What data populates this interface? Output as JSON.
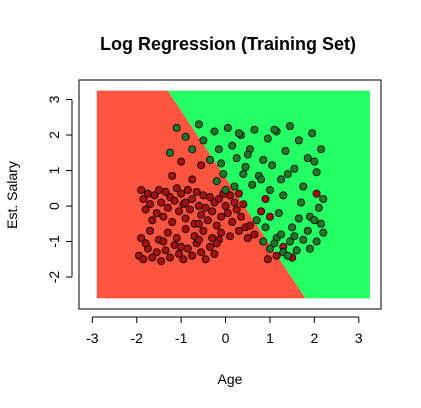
{
  "chart_data": {
    "type": "scatter",
    "title": "Log Regression (Training Set)",
    "xlabel": "Age",
    "ylabel": "Est. Salary",
    "xlim": [
      -3.3,
      3.5
    ],
    "ylim": [
      -2.9,
      3.55
    ],
    "x_ticks": [
      -3,
      -2,
      -1,
      0,
      1,
      2,
      3
    ],
    "y_ticks": [
      -2,
      -1,
      0,
      1,
      2,
      3
    ],
    "grid": false,
    "colors": {
      "region_class_0": "#ff5540",
      "region_class_1": "#24ff63",
      "class_0_point": "#a81010",
      "class_1_point": "#1a7a2a",
      "point_outline": "#000000"
    },
    "decision_regions": {
      "x_range": [
        -2.9,
        3.25
      ],
      "y_range": [
        -2.6,
        3.25
      ],
      "boundary_line": [
        [
          -1.3,
          3.25
        ],
        [
          1.8,
          -2.6
        ]
      ],
      "class_0_side": "left",
      "class_1_side": "right"
    },
    "series": [
      {
        "class": 0,
        "points": [
          [
            -1.9,
            0.45
          ],
          [
            -1.85,
            0.2
          ],
          [
            -1.8,
            -0.1
          ],
          [
            -1.75,
            0.35
          ],
          [
            -1.7,
            0.05
          ],
          [
            -1.65,
            -0.4
          ],
          [
            -1.6,
            0.3
          ],
          [
            -1.55,
            -0.2
          ],
          [
            -1.5,
            0.45
          ],
          [
            -1.45,
            0.1
          ],
          [
            -1.4,
            -0.3
          ],
          [
            -1.35,
            0.4
          ],
          [
            -1.3,
            -0.05
          ],
          [
            -1.25,
            0.25
          ],
          [
            -1.2,
            -0.45
          ],
          [
            -1.15,
            0.15
          ],
          [
            -1.1,
            0.5
          ],
          [
            -1.05,
            -0.15
          ],
          [
            -1.0,
            0.35
          ],
          [
            -0.95,
            0.05
          ],
          [
            -0.9,
            -0.35
          ],
          [
            -0.85,
            0.45
          ],
          [
            -0.8,
            -0.1
          ],
          [
            -0.75,
            0.2
          ],
          [
            -0.7,
            -0.5
          ],
          [
            -0.65,
            0.4
          ],
          [
            -0.6,
            0.0
          ],
          [
            -0.55,
            -0.25
          ],
          [
            -0.5,
            0.3
          ],
          [
            -0.45,
            -0.05
          ],
          [
            -0.4,
            -0.4
          ],
          [
            -0.35,
            0.25
          ],
          [
            -0.3,
            -0.15
          ],
          [
            -0.25,
            0.1
          ],
          [
            -0.2,
            -0.55
          ],
          [
            -0.15,
            0.2
          ],
          [
            -0.1,
            -0.3
          ],
          [
            -0.05,
            0.35
          ],
          [
            0.0,
            0.0
          ],
          [
            0.05,
            -0.2
          ],
          [
            0.1,
            0.3
          ],
          [
            0.15,
            -0.45
          ],
          [
            0.2,
            0.1
          ],
          [
            0.25,
            -0.1
          ],
          [
            0.3,
            0.35
          ],
          [
            0.35,
            -0.3
          ],
          [
            0.4,
            0.05
          ],
          [
            0.45,
            -0.6
          ],
          [
            -1.95,
            -1.4
          ],
          [
            -1.85,
            -1.5
          ],
          [
            -1.75,
            -1.2
          ],
          [
            -1.65,
            -1.45
          ],
          [
            -1.55,
            -1.3
          ],
          [
            -1.45,
            -1.55
          ],
          [
            -1.35,
            -1.25
          ],
          [
            -1.25,
            -1.45
          ],
          [
            -1.15,
            -1.1
          ],
          [
            -1.05,
            -1.35
          ],
          [
            -0.95,
            -1.5
          ],
          [
            -0.85,
            -1.2
          ],
          [
            -0.75,
            -1.4
          ],
          [
            -0.65,
            -1.05
          ],
          [
            -0.55,
            -1.3
          ],
          [
            -0.45,
            -1.5
          ],
          [
            -0.35,
            -1.15
          ],
          [
            -0.25,
            -1.35
          ],
          [
            -0.15,
            -0.95
          ],
          [
            -1.9,
            -0.9
          ],
          [
            -1.7,
            -0.7
          ],
          [
            -1.5,
            -0.95
          ],
          [
            -1.3,
            -0.75
          ],
          [
            -1.1,
            -0.9
          ],
          [
            -0.9,
            -0.65
          ],
          [
            -0.7,
            -0.85
          ],
          [
            -0.5,
            -0.7
          ],
          [
            -0.3,
            -0.9
          ],
          [
            -0.1,
            -0.75
          ],
          [
            0.1,
            -0.85
          ],
          [
            0.3,
            -0.7
          ],
          [
            0.5,
            -0.9
          ],
          [
            0.65,
            -0.8
          ],
          [
            0.55,
            -0.55
          ],
          [
            -1.8,
            -1.05
          ],
          [
            -1.4,
            -1.0
          ],
          [
            -1.0,
            -1.15
          ],
          [
            -0.6,
            -0.95
          ],
          [
            -0.2,
            -1.05
          ],
          [
            0.8,
            -0.15
          ],
          [
            1.0,
            -0.3
          ],
          [
            0.9,
            0.2
          ],
          [
            1.3,
            -1.15
          ],
          [
            1.15,
            -1.4
          ],
          [
            2.05,
            0.35
          ],
          [
            1.5,
            -1.45
          ],
          [
            0.95,
            -1.5
          ],
          [
            -1.2,
            0.85
          ],
          [
            -1.0,
            1.25
          ],
          [
            -0.75,
            0.75
          ],
          [
            -0.55,
            1.15
          ],
          [
            -0.6,
            -0.5
          ],
          [
            -0.9,
            0.1
          ]
        ]
      },
      {
        "class": 1,
        "points": [
          [
            -1.25,
            1.5
          ],
          [
            -1.1,
            2.2
          ],
          [
            -0.9,
            1.95
          ],
          [
            -0.75,
            1.6
          ],
          [
            -0.6,
            2.3
          ],
          [
            -0.5,
            1.85
          ],
          [
            -0.35,
            1.3
          ],
          [
            -0.25,
            2.1
          ],
          [
            -0.15,
            1.6
          ],
          [
            -0.05,
            0.9
          ],
          [
            0.05,
            2.2
          ],
          [
            0.15,
            1.7
          ],
          [
            0.25,
            1.35
          ],
          [
            0.35,
            2.0
          ],
          [
            0.45,
            1.1
          ],
          [
            0.55,
            1.6
          ],
          [
            0.65,
            2.15
          ],
          [
            0.75,
            0.85
          ],
          [
            0.85,
            1.3
          ],
          [
            0.95,
            1.9
          ],
          [
            1.05,
            1.15
          ],
          [
            1.15,
            2.1
          ],
          [
            1.25,
            0.75
          ],
          [
            1.35,
            1.55
          ],
          [
            1.45,
            2.25
          ],
          [
            1.55,
            1.05
          ],
          [
            1.65,
            1.85
          ],
          [
            1.75,
            0.55
          ],
          [
            1.85,
            1.35
          ],
          [
            1.95,
            2.05
          ],
          [
            2.05,
            0.95
          ],
          [
            2.15,
            1.6
          ],
          [
            2.1,
            -0.05
          ],
          [
            1.9,
            -0.3
          ],
          [
            1.7,
            0.1
          ],
          [
            1.5,
            -0.6
          ],
          [
            1.3,
            0.3
          ],
          [
            1.2,
            -0.2
          ],
          [
            1.0,
            0.45
          ],
          [
            0.8,
            0.75
          ],
          [
            0.6,
            0.6
          ],
          [
            0.4,
            0.9
          ],
          [
            0.2,
            0.55
          ],
          [
            0.0,
            0.45
          ],
          [
            -0.1,
            1.2
          ],
          [
            0.85,
            -1.0
          ],
          [
            1.0,
            -1.2
          ],
          [
            1.15,
            -0.9
          ],
          [
            1.3,
            -1.3
          ],
          [
            1.45,
            -1.0
          ],
          [
            1.6,
            -1.25
          ],
          [
            1.75,
            -0.95
          ],
          [
            1.9,
            -1.2
          ],
          [
            2.05,
            -1.0
          ],
          [
            2.2,
            -0.75
          ],
          [
            1.1,
            -1.05
          ],
          [
            1.25,
            -0.8
          ],
          [
            1.4,
            -1.4
          ],
          [
            1.55,
            -0.85
          ],
          [
            2.15,
            -0.5
          ],
          [
            1.85,
            -0.7
          ],
          [
            2.0,
            -0.4
          ],
          [
            0.7,
            -0.4
          ],
          [
            0.9,
            -0.6
          ],
          [
            1.65,
            -0.35
          ],
          [
            2.2,
            0.2
          ],
          [
            1.4,
            0.9
          ],
          [
            0.5,
            1.45
          ],
          [
            -0.2,
            0.7
          ],
          [
            2.0,
            1.25
          ],
          [
            1.1,
            2.15
          ],
          [
            0.3,
            2.05
          ]
        ]
      }
    ]
  }
}
